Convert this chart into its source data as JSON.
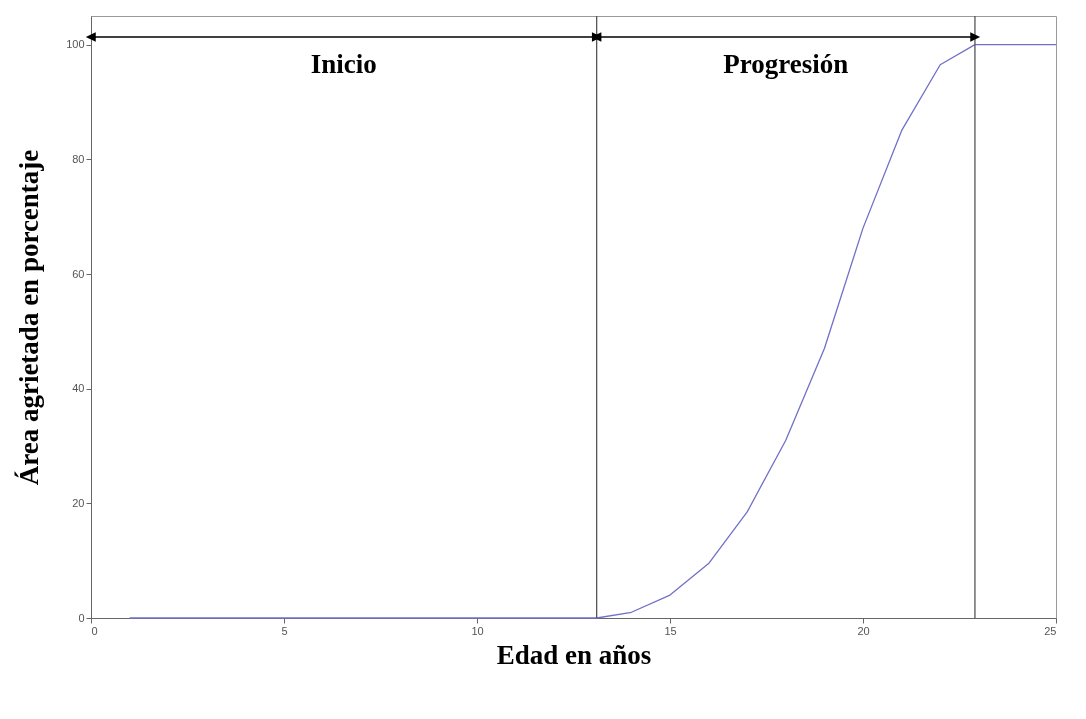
{
  "chart_data": {
    "type": "line",
    "xlabel": "Edad en años",
    "ylabel": "Área agrietada en porcentaje",
    "x": [
      1,
      2,
      3,
      4,
      5,
      6,
      7,
      8,
      9,
      10,
      11,
      12,
      13,
      13.1,
      14,
      15,
      16,
      17,
      18,
      19,
      20,
      21,
      22,
      22.9,
      25
    ],
    "series": [
      {
        "color": "#7070c8",
        "values": [
          0,
          0,
          0,
          0,
          0,
          0,
          0,
          0,
          0,
          0,
          0,
          0,
          0,
          0,
          1,
          4,
          9.5,
          18.5,
          31,
          47,
          68,
          85,
          96.5,
          100,
          100
        ]
      }
    ],
    "xlim": [
      0,
      25
    ],
    "xticks": [
      0,
      5,
      10,
      15,
      20,
      25
    ],
    "ylim": [
      0,
      105
    ],
    "yticks": [
      0,
      20,
      40,
      60,
      80,
      100
    ],
    "grid": false,
    "marker": "none",
    "line_style": "solid",
    "ref_lines": [
      {
        "axis": "x",
        "value": 13.1,
        "color": "#555555"
      },
      {
        "axis": "x",
        "value": 22.9,
        "color": "#555555"
      }
    ],
    "annotations": [
      "Inicio",
      "Progresión"
    ]
  }
}
